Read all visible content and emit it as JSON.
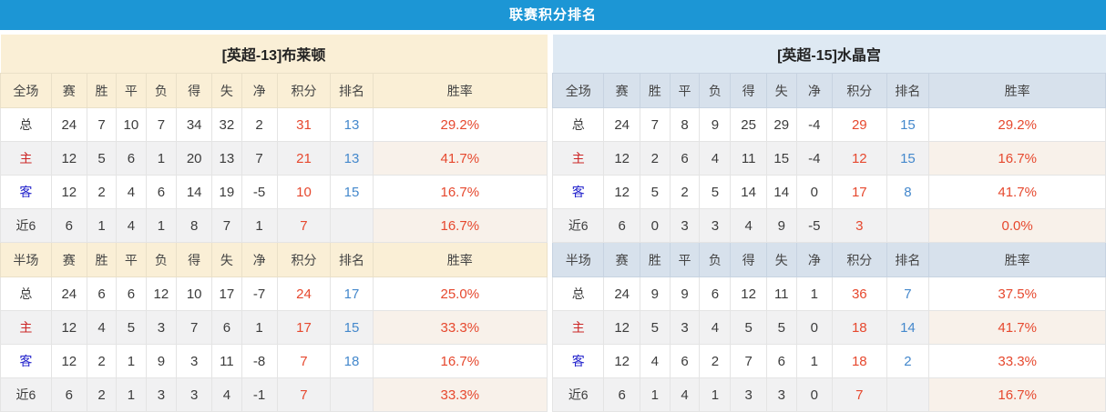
{
  "title_bar": {
    "title": "联赛积分排名"
  },
  "colors": {
    "title_bg": "#1C96D5",
    "left_panel_header_bg": "#FAEFD6",
    "right_panel_header_bg": "#DEE9F3",
    "right_panel_subheader_bg": "#D7E1EC",
    "stripe_row_bg": "#F1F1F2",
    "points_winrate_red": "#E6482E",
    "rank_blue": "#4488CC",
    "home_label_red": "#CC2626",
    "away_label_blue": "#2323CC"
  },
  "tables": [
    {
      "team": "[英超-13]布莱顿",
      "sections": [
        {
          "header": [
            "全场",
            "赛",
            "胜",
            "平",
            "负",
            "得",
            "失",
            "净",
            "积分",
            "排名",
            "胜率"
          ],
          "rows": [
            {
              "label": "总",
              "type": "total",
              "cells": [
                "24",
                "7",
                "10",
                "7",
                "34",
                "32",
                "2",
                "31",
                "13",
                "29.2%"
              ]
            },
            {
              "label": "主",
              "type": "home",
              "cells": [
                "12",
                "5",
                "6",
                "1",
                "20",
                "13",
                "7",
                "21",
                "13",
                "41.7%"
              ]
            },
            {
              "label": "客",
              "type": "away",
              "cells": [
                "12",
                "2",
                "4",
                "6",
                "14",
                "19",
                "-5",
                "10",
                "15",
                "16.7%"
              ]
            },
            {
              "label": "近6",
              "type": "recent",
              "cells": [
                "6",
                "1",
                "4",
                "1",
                "8",
                "7",
                "1",
                "7",
                "",
                "16.7%"
              ]
            }
          ]
        },
        {
          "header": [
            "半场",
            "赛",
            "胜",
            "平",
            "负",
            "得",
            "失",
            "净",
            "积分",
            "排名",
            "胜率"
          ],
          "rows": [
            {
              "label": "总",
              "type": "total",
              "cells": [
                "24",
                "6",
                "6",
                "12",
                "10",
                "17",
                "-7",
                "24",
                "17",
                "25.0%"
              ]
            },
            {
              "label": "主",
              "type": "home",
              "cells": [
                "12",
                "4",
                "5",
                "3",
                "7",
                "6",
                "1",
                "17",
                "15",
                "33.3%"
              ]
            },
            {
              "label": "客",
              "type": "away",
              "cells": [
                "12",
                "2",
                "1",
                "9",
                "3",
                "11",
                "-8",
                "7",
                "18",
                "16.7%"
              ]
            },
            {
              "label": "近6",
              "type": "recent",
              "cells": [
                "6",
                "2",
                "1",
                "3",
                "3",
                "4",
                "-1",
                "7",
                "",
                "33.3%"
              ]
            }
          ]
        }
      ]
    },
    {
      "team": "[英超-15]水晶宫",
      "sections": [
        {
          "header": [
            "全场",
            "赛",
            "胜",
            "平",
            "负",
            "得",
            "失",
            "净",
            "积分",
            "排名",
            "胜率"
          ],
          "rows": [
            {
              "label": "总",
              "type": "total",
              "cells": [
                "24",
                "7",
                "8",
                "9",
                "25",
                "29",
                "-4",
                "29",
                "15",
                "29.2%"
              ]
            },
            {
              "label": "主",
              "type": "home",
              "cells": [
                "12",
                "2",
                "6",
                "4",
                "11",
                "15",
                "-4",
                "12",
                "15",
                "16.7%"
              ]
            },
            {
              "label": "客",
              "type": "away",
              "cells": [
                "12",
                "5",
                "2",
                "5",
                "14",
                "14",
                "0",
                "17",
                "8",
                "41.7%"
              ]
            },
            {
              "label": "近6",
              "type": "recent",
              "cells": [
                "6",
                "0",
                "3",
                "3",
                "4",
                "9",
                "-5",
                "3",
                "",
                "0.0%"
              ]
            }
          ]
        },
        {
          "header": [
            "半场",
            "赛",
            "胜",
            "平",
            "负",
            "得",
            "失",
            "净",
            "积分",
            "排名",
            "胜率"
          ],
          "rows": [
            {
              "label": "总",
              "type": "total",
              "cells": [
                "24",
                "9",
                "9",
                "6",
                "12",
                "11",
                "1",
                "36",
                "7",
                "37.5%"
              ]
            },
            {
              "label": "主",
              "type": "home",
              "cells": [
                "12",
                "5",
                "3",
                "4",
                "5",
                "5",
                "0",
                "18",
                "14",
                "41.7%"
              ]
            },
            {
              "label": "客",
              "type": "away",
              "cells": [
                "12",
                "4",
                "6",
                "2",
                "7",
                "6",
                "1",
                "18",
                "2",
                "33.3%"
              ]
            },
            {
              "label": "近6",
              "type": "recent",
              "cells": [
                "6",
                "1",
                "4",
                "1",
                "3",
                "3",
                "0",
                "7",
                "",
                "16.7%"
              ]
            }
          ]
        }
      ]
    }
  ]
}
